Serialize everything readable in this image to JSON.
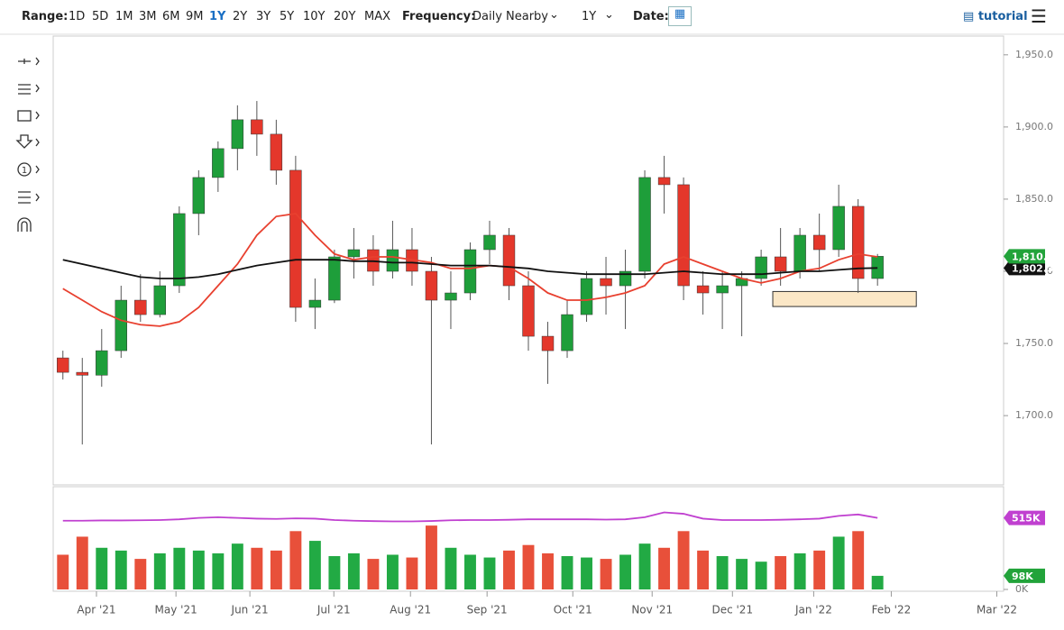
{
  "toolbar": {
    "range_label": "Range:",
    "ranges": [
      "1D",
      "5D",
      "1M",
      "3M",
      "6M",
      "9M",
      "1Y",
      "2Y",
      "3Y",
      "5Y",
      "10Y",
      "20Y",
      "MAX"
    ],
    "active_range": 6,
    "frequency_label": "Frequency:",
    "frequency": "Daily Nearby",
    "period": "1Y",
    "date_label": "Date:",
    "tutorial": "tutorial"
  },
  "chart_data": [
    {
      "type": "candlestick",
      "up_color": "#1e9e3a",
      "down_color": "#e4372b",
      "xlim": [
        0,
        49
      ],
      "ylim": [
        1652,
        1963
      ],
      "yticks": [
        {
          "value": 1700,
          "label": "1,700.0"
        },
        {
          "value": 1750,
          "label": "1,750.0"
        },
        {
          "value": 1800,
          "label": "1,800.0"
        },
        {
          "value": 1850,
          "label": "1,850.0"
        },
        {
          "value": 1900,
          "label": "1,900.0"
        },
        {
          "value": 1950,
          "label": "1,950.0"
        }
      ],
      "open": [
        1740,
        1730,
        1728,
        1745,
        1780,
        1770,
        1790,
        1840,
        1865,
        1885,
        1905,
        1895,
        1870,
        1775,
        1780,
        1810,
        1815,
        1800,
        1815,
        1800,
        1780,
        1785,
        1815,
        1825,
        1790,
        1755,
        1745,
        1770,
        1795,
        1790,
        1800,
        1865,
        1860,
        1790,
        1785,
        1790,
        1795,
        1810,
        1800,
        1825,
        1815,
        1845,
        1795
      ],
      "high": [
        1745,
        1740,
        1760,
        1790,
        1798,
        1800,
        1845,
        1870,
        1890,
        1915,
        1918,
        1905,
        1880,
        1795,
        1815,
        1830,
        1825,
        1835,
        1830,
        1810,
        1800,
        1820,
        1835,
        1830,
        1800,
        1765,
        1780,
        1800,
        1810,
        1815,
        1870,
        1880,
        1865,
        1800,
        1800,
        1800,
        1815,
        1830,
        1830,
        1840,
        1860,
        1850,
        1812
      ],
      "low": [
        1725,
        1680,
        1720,
        1740,
        1765,
        1768,
        1785,
        1825,
        1855,
        1870,
        1880,
        1860,
        1765,
        1760,
        1778,
        1795,
        1790,
        1795,
        1790,
        1680,
        1760,
        1780,
        1805,
        1780,
        1745,
        1722,
        1740,
        1765,
        1770,
        1760,
        1795,
        1840,
        1780,
        1770,
        1760,
        1755,
        1790,
        1790,
        1795,
        1800,
        1810,
        1785,
        1790
      ],
      "close": [
        1730,
        1728,
        1745,
        1780,
        1770,
        1790,
        1840,
        1865,
        1885,
        1905,
        1895,
        1870,
        1775,
        1780,
        1810,
        1815,
        1800,
        1815,
        1800,
        1780,
        1785,
        1815,
        1825,
        1790,
        1755,
        1745,
        1770,
        1795,
        1790,
        1800,
        1865,
        1860,
        1790,
        1785,
        1790,
        1795,
        1810,
        1800,
        1825,
        1815,
        1845,
        1795,
        1810.4
      ],
      "series": [
        {
          "color": "#e8402f",
          "values": [
            1788,
            1780,
            1772,
            1766,
            1763,
            1762,
            1765,
            1775,
            1790,
            1805,
            1825,
            1838,
            1840,
            1825,
            1812,
            1808,
            1810,
            1810,
            1808,
            1806,
            1802,
            1802,
            1804,
            1803,
            1795,
            1785,
            1780,
            1780,
            1782,
            1785,
            1790,
            1805,
            1810,
            1805,
            1800,
            1795,
            1792,
            1795,
            1800,
            1802,
            1808,
            1812,
            1810
          ]
        },
        {
          "color": "#111111",
          "values": [
            1808,
            1805,
            1802,
            1799,
            1796,
            1795,
            1795,
            1796,
            1798,
            1801,
            1804,
            1806,
            1808,
            1808,
            1808,
            1807,
            1807,
            1806,
            1806,
            1805,
            1804,
            1804,
            1804,
            1803,
            1802,
            1800,
            1799,
            1798,
            1798,
            1798,
            1798,
            1799,
            1800,
            1799,
            1798,
            1798,
            1798,
            1799,
            1800,
            1800,
            1801,
            1802,
            1802.3
          ]
        }
      ],
      "markers": [
        {
          "value": 1802.3,
          "label": "1,802.3",
          "color": "#111111"
        },
        {
          "value": 1810.4,
          "label": "1,810.4",
          "color": "#22a33a"
        }
      ],
      "annotations": [
        {
          "x": [
            37.1,
            44.5
          ],
          "y": [
            1775.6,
            1786
          ],
          "color": "#fbe7c6"
        }
      ]
    },
    {
      "type": "volume",
      "up_color": "#22aa44",
      "down_color": "#e8503a",
      "xlim": [
        0,
        49
      ],
      "ylim": [
        0,
        740
      ],
      "yticks": [
        {
          "value": 0,
          "label": "0K"
        }
      ],
      "xticks": [
        {
          "value": 2.23,
          "label": "Apr '21"
        },
        {
          "value": 6.33,
          "label": "May '21"
        },
        {
          "value": 10.14,
          "label": "Jun '21"
        },
        {
          "value": 14.47,
          "label": "Jul '21"
        },
        {
          "value": 18.42,
          "label": "Aug '21"
        },
        {
          "value": 22.37,
          "label": "Sep '21"
        },
        {
          "value": 26.79,
          "label": "Oct '21"
        },
        {
          "value": 30.88,
          "label": "Nov '21"
        },
        {
          "value": 35.02,
          "label": "Dec '21"
        },
        {
          "value": 39.21,
          "label": "Jan '22"
        },
        {
          "value": 43.21,
          "label": "Feb '22"
        },
        {
          "value": 48.65,
          "label": "Mar '22"
        }
      ],
      "values": [
        250,
        380,
        300,
        280,
        220,
        260,
        300,
        280,
        260,
        330,
        300,
        280,
        420,
        350,
        240,
        260,
        220,
        250,
        230,
        460,
        300,
        250,
        230,
        280,
        320,
        260,
        240,
        230,
        220,
        250,
        330,
        300,
        420,
        280,
        240,
        220,
        200,
        240,
        260,
        280,
        380,
        420,
        98
      ],
      "series": [
        {
          "color": "#c040d0",
          "values": [
            495,
            495,
            497,
            497,
            498,
            500,
            505,
            515,
            520,
            515,
            510,
            508,
            512,
            510,
            500,
            495,
            492,
            490,
            490,
            493,
            498,
            500,
            500,
            502,
            505,
            505,
            505,
            505,
            503,
            505,
            520,
            555,
            545,
            510,
            500,
            500,
            500,
            502,
            505,
            510,
            530,
            540,
            515
          ]
        }
      ],
      "markers": [
        {
          "value": 515,
          "label": "515K",
          "color": "#c040d0"
        },
        {
          "value": 98,
          "label": "98K",
          "color": "#22a33a"
        }
      ]
    }
  ]
}
